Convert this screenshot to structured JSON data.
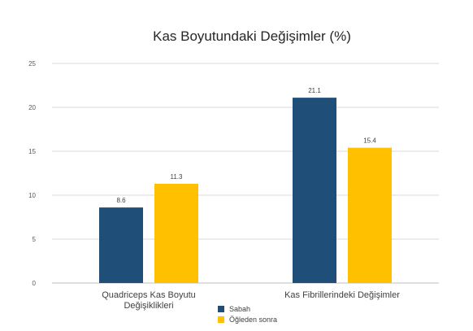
{
  "chart_data": {
    "type": "bar",
    "title": "Kas Boyutundaki Değişimler (%)",
    "xlabel": "",
    "ylabel": "",
    "categories": [
      [
        "Quadriceps Kas Boyutu",
        "Değişiklikleri"
      ],
      [
        "Kas Fibrillerindeki Değişimler"
      ]
    ],
    "series": [
      {
        "name": "Sabah",
        "color": "#1f4e79",
        "values": [
          8.6,
          21.1
        ]
      },
      {
        "name": "Öğleden sonra",
        "color": "#ffc000",
        "values": [
          11.3,
          15.4
        ]
      }
    ],
    "ylim": [
      0,
      25
    ],
    "yticks": [
      0,
      5,
      10,
      15,
      20,
      25
    ],
    "grid": true,
    "legend_position": "bottom",
    "data_labels": true
  }
}
